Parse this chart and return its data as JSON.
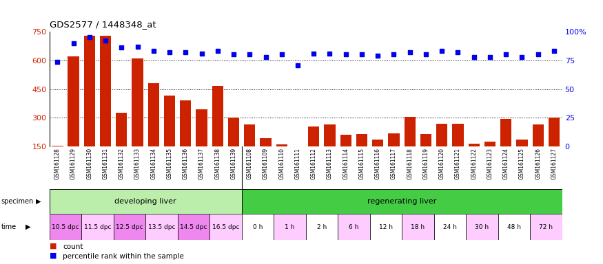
{
  "title": "GDS2577 / 1448348_at",
  "samples": [
    "GSM161128",
    "GSM161129",
    "GSM161130",
    "GSM161131",
    "GSM161132",
    "GSM161133",
    "GSM161134",
    "GSM161135",
    "GSM161136",
    "GSM161137",
    "GSM161138",
    "GSM161139",
    "GSM161108",
    "GSM161109",
    "GSM161110",
    "GSM161111",
    "GSM161112",
    "GSM161113",
    "GSM161114",
    "GSM161115",
    "GSM161116",
    "GSM161117",
    "GSM161118",
    "GSM161119",
    "GSM161120",
    "GSM161121",
    "GSM161122",
    "GSM161123",
    "GSM161124",
    "GSM161125",
    "GSM161126",
    "GSM161127"
  ],
  "counts": [
    155,
    620,
    730,
    730,
    325,
    610,
    480,
    415,
    390,
    345,
    465,
    300,
    265,
    195,
    160,
    130,
    255,
    265,
    210,
    215,
    185,
    220,
    305,
    215,
    270,
    270,
    165,
    175,
    295,
    185,
    265,
    300
  ],
  "percentiles": [
    74,
    90,
    95,
    92,
    86,
    87,
    83,
    82,
    82,
    81,
    83,
    80,
    80,
    78,
    80,
    71,
    81,
    81,
    80,
    80,
    79,
    80,
    82,
    80,
    83,
    82,
    78,
    78,
    80,
    78,
    80,
    83
  ],
  "ylim_left": [
    150,
    750
  ],
  "ylim_right": [
    0,
    100
  ],
  "yticks_left": [
    150,
    300,
    450,
    600,
    750
  ],
  "yticks_right": [
    0,
    25,
    50,
    75,
    100
  ],
  "bar_color": "#cc2200",
  "dot_color": "#0000ee",
  "specimen_groups": [
    {
      "label": "developing liver",
      "start": 0,
      "end": 12,
      "color": "#bbeeaa"
    },
    {
      "label": "regenerating liver",
      "start": 12,
      "end": 32,
      "color": "#44cc44"
    }
  ],
  "time_labels": [
    {
      "label": "10.5 dpc",
      "start": 0,
      "end": 2,
      "color": "#ee88ee"
    },
    {
      "label": "11.5 dpc",
      "start": 2,
      "end": 4,
      "color": "#ffccff"
    },
    {
      "label": "12.5 dpc",
      "start": 4,
      "end": 6,
      "color": "#ee88ee"
    },
    {
      "label": "13.5 dpc",
      "start": 6,
      "end": 8,
      "color": "#ffccff"
    },
    {
      "label": "14.5 dpc",
      "start": 8,
      "end": 10,
      "color": "#ee88ee"
    },
    {
      "label": "16.5 dpc",
      "start": 10,
      "end": 12,
      "color": "#ffccff"
    },
    {
      "label": "0 h",
      "start": 12,
      "end": 14,
      "color": "#ffffff"
    },
    {
      "label": "1 h",
      "start": 14,
      "end": 16,
      "color": "#ffccff"
    },
    {
      "label": "2 h",
      "start": 16,
      "end": 18,
      "color": "#ffffff"
    },
    {
      "label": "6 h",
      "start": 18,
      "end": 20,
      "color": "#ffccff"
    },
    {
      "label": "12 h",
      "start": 20,
      "end": 22,
      "color": "#ffffff"
    },
    {
      "label": "18 h",
      "start": 22,
      "end": 24,
      "color": "#ffccff"
    },
    {
      "label": "24 h",
      "start": 24,
      "end": 26,
      "color": "#ffffff"
    },
    {
      "label": "30 h",
      "start": 26,
      "end": 28,
      "color": "#ffccff"
    },
    {
      "label": "48 h",
      "start": 28,
      "end": 30,
      "color": "#ffffff"
    },
    {
      "label": "72 h",
      "start": 30,
      "end": 32,
      "color": "#ffccff"
    }
  ],
  "bg_color": "#ffffff",
  "xtick_bg_color": "#dddddd",
  "legend": [
    {
      "color": "#cc2200",
      "label": "count"
    },
    {
      "color": "#0000ee",
      "label": "percentile rank within the sample"
    }
  ]
}
